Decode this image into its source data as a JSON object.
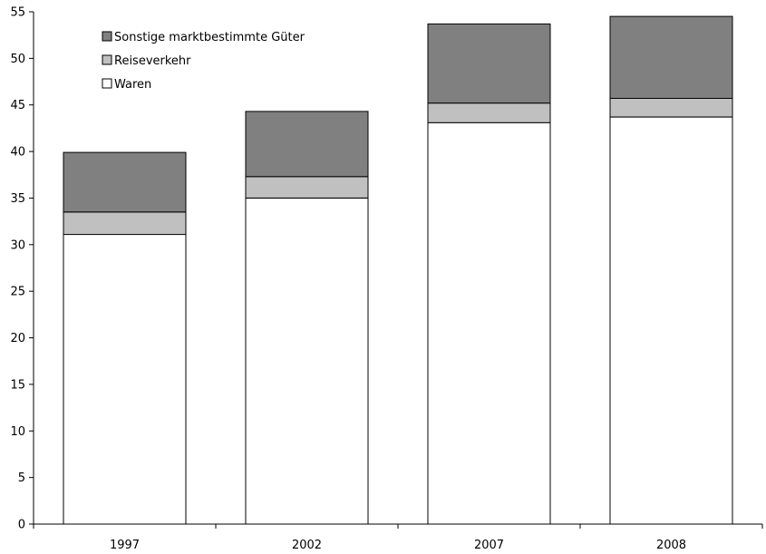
{
  "chart_data": {
    "type": "bar",
    "stacked": true,
    "categories": [
      "1997",
      "2002",
      "2007",
      "2008"
    ],
    "series": [
      {
        "name": "Waren",
        "values": [
          31.1,
          35.0,
          43.1,
          43.7
        ],
        "color": "#ffffff"
      },
      {
        "name": "Reiseverkehr",
        "values": [
          2.4,
          2.3,
          2.1,
          2.0
        ],
        "color": "#c0c0c0"
      },
      {
        "name": "Sonstige marktbestimmte Güter",
        "values": [
          6.4,
          7.0,
          8.5,
          8.8
        ],
        "color": "#808080"
      }
    ],
    "legend_order": [
      "Sonstige marktbestimmte Güter",
      "Reiseverkehr",
      "Waren"
    ],
    "legend_position": "top-left",
    "ylim": [
      0,
      55
    ],
    "yticks": [
      0,
      5,
      10,
      15,
      20,
      25,
      30,
      35,
      40,
      45,
      50,
      55
    ],
    "grid": false,
    "title": "",
    "xlabel": "",
    "ylabel": ""
  }
}
